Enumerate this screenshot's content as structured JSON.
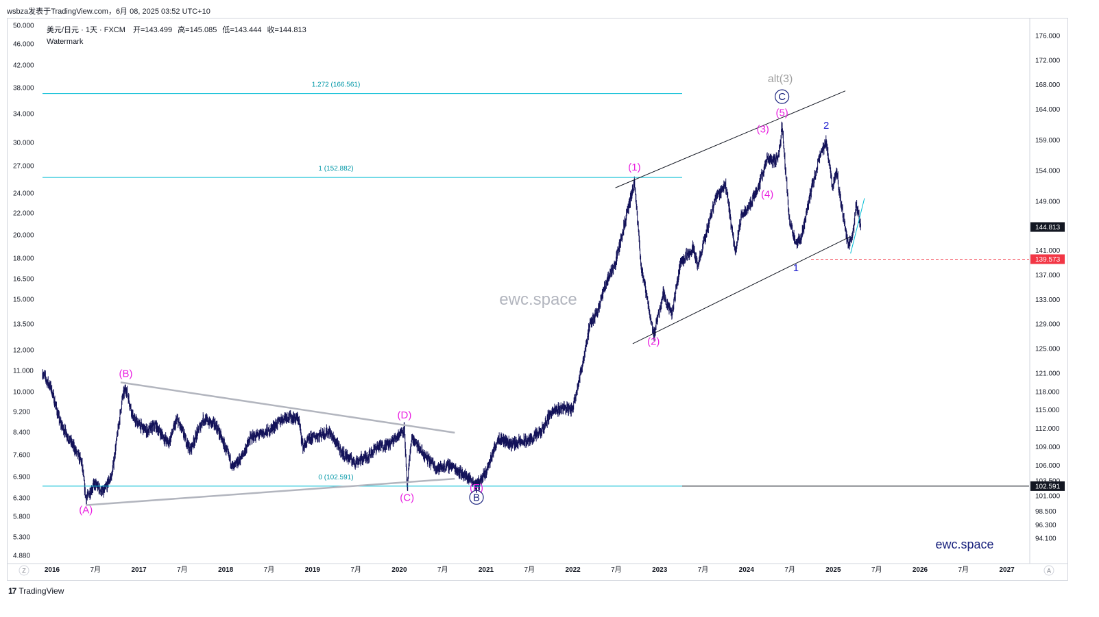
{
  "header": {
    "publish_line": "wsbza发表于TradingView.com，6月 08, 2025 03:52 UTC+10"
  },
  "legend": {
    "symbol": "美元/日元 · 1天 · FXCM",
    "open": "开=143.499",
    "high": "高=145.085",
    "low": "低=143.444",
    "close": "收=144.813",
    "watermark_label": "Watermark"
  },
  "watermarks": {
    "center": "ewc.space",
    "corner": "ewc.space"
  },
  "footer": {
    "brand": "TradingView",
    "logo_glyph": "17"
  },
  "axis_buttons": {
    "left": "Z",
    "right": "A"
  },
  "colors": {
    "candle": "#131259",
    "fib": "#00bcd4",
    "wave_magenta": "#e91ee0",
    "wave_blue": "#1a1acc",
    "wave_navy": "#1a237e",
    "alt_gray": "#9e9e9e",
    "channel": "#b2b5be",
    "dashed_red": "#f23645"
  },
  "chart_data": {
    "type": "candlestick",
    "symbol": "USD/JPY",
    "timeframe": "1D",
    "right_axis_ticks": [
      "176.000",
      "172.000",
      "168.000",
      "164.000",
      "159.000",
      "154.000",
      "149.000",
      "144.813",
      "141.000",
      "137.000",
      "133.000",
      "129.000",
      "125.000",
      "121.000",
      "118.000",
      "115.000",
      "112.000",
      "109.000",
      "106.000",
      "103.500",
      "101.000",
      "98.500",
      "96.300",
      "94.100"
    ],
    "left_axis_ticks": [
      "50.000",
      "46.000",
      "42.000",
      "38.000",
      "34.000",
      "30.000",
      "27.000",
      "24.000",
      "22.000",
      "20.000",
      "18.000",
      "16.500",
      "15.000",
      "13.500",
      "12.000",
      "11.000",
      "10.000",
      "9.200",
      "8.400",
      "7.600",
      "6.900",
      "6.300",
      "5.800",
      "5.300",
      "4.880"
    ],
    "x_ticks": [
      "2016",
      "7月",
      "2017",
      "7月",
      "2018",
      "7月",
      "2019",
      "7月",
      "2020",
      "7月",
      "2021",
      "7月",
      "2022",
      "7月",
      "2023",
      "7月",
      "2024",
      "7月",
      "2025",
      "7月",
      "2026",
      "7月",
      "2027"
    ],
    "price_labels": {
      "last": "144.813",
      "stop": "139.573",
      "fib_zero": "102.591"
    },
    "fib_levels": [
      {
        "label": "1.272 (166.561)",
        "price": 166.561
      },
      {
        "label": "1 (152.882)",
        "price": 152.882
      },
      {
        "label": "0 (102.591)",
        "price": 102.591
      }
    ],
    "path": [
      [
        2016.0,
        121.0
      ],
      [
        2016.1,
        118.5
      ],
      [
        2016.2,
        113.0
      ],
      [
        2016.3,
        110.5
      ],
      [
        2016.45,
        106.5
      ],
      [
        2016.5,
        100.5
      ],
      [
        2016.6,
        103.0
      ],
      [
        2016.7,
        101.5
      ],
      [
        2016.8,
        104.5
      ],
      [
        2016.92,
        117.0
      ],
      [
        2016.96,
        118.6
      ],
      [
        2017.05,
        113.5
      ],
      [
        2017.2,
        111.5
      ],
      [
        2017.3,
        112.5
      ],
      [
        2017.45,
        109.5
      ],
      [
        2017.55,
        113.5
      ],
      [
        2017.7,
        108.5
      ],
      [
        2017.85,
        113.5
      ],
      [
        2018.0,
        112.5
      ],
      [
        2018.1,
        109.0
      ],
      [
        2018.2,
        105.5
      ],
      [
        2018.3,
        107.5
      ],
      [
        2018.4,
        110.5
      ],
      [
        2018.6,
        111.5
      ],
      [
        2018.8,
        114.0
      ],
      [
        2018.95,
        113.5
      ],
      [
        2019.0,
        109.0
      ],
      [
        2019.1,
        110.5
      ],
      [
        2019.3,
        111.5
      ],
      [
        2019.45,
        108.0
      ],
      [
        2019.6,
        106.5
      ],
      [
        2019.75,
        107.5
      ],
      [
        2019.85,
        109.0
      ],
      [
        2020.0,
        109.5
      ],
      [
        2020.17,
        112.0
      ],
      [
        2020.2,
        102.0
      ],
      [
        2020.25,
        110.5
      ],
      [
        2020.4,
        107.5
      ],
      [
        2020.55,
        105.5
      ],
      [
        2020.7,
        106.0
      ],
      [
        2020.85,
        104.5
      ],
      [
        2020.95,
        103.5
      ],
      [
        2021.0,
        102.7
      ],
      [
        2021.1,
        104.5
      ],
      [
        2021.25,
        110.5
      ],
      [
        2021.4,
        109.5
      ],
      [
        2021.6,
        110.0
      ],
      [
        2021.75,
        111.5
      ],
      [
        2021.85,
        114.5
      ],
      [
        2022.0,
        115.5
      ],
      [
        2022.1,
        115.0
      ],
      [
        2022.2,
        121.0
      ],
      [
        2022.3,
        128.5
      ],
      [
        2022.4,
        131.5
      ],
      [
        2022.5,
        136.0
      ],
      [
        2022.6,
        139.0
      ],
      [
        2022.75,
        148.0
      ],
      [
        2022.82,
        151.9
      ],
      [
        2022.9,
        138.0
      ],
      [
        2023.0,
        130.5
      ],
      [
        2023.04,
        127.2
      ],
      [
        2023.15,
        134.0
      ],
      [
        2023.25,
        130.5
      ],
      [
        2023.35,
        139.0
      ],
      [
        2023.5,
        141.5
      ],
      [
        2023.55,
        138.5
      ],
      [
        2023.75,
        149.5
      ],
      [
        2023.87,
        151.8
      ],
      [
        2023.98,
        140.8
      ],
      [
        2024.05,
        146.5
      ],
      [
        2024.15,
        148.5
      ],
      [
        2024.25,
        151.5
      ],
      [
        2024.35,
        156.0
      ],
      [
        2024.45,
        155.5
      ],
      [
        2024.5,
        158.0
      ],
      [
        2024.52,
        161.9
      ],
      [
        2024.6,
        146.5
      ],
      [
        2024.68,
        141.7
      ],
      [
        2024.75,
        143.5
      ],
      [
        2024.85,
        150.5
      ],
      [
        2024.95,
        156.0
      ],
      [
        2025.03,
        158.8
      ],
      [
        2025.1,
        151.5
      ],
      [
        2025.15,
        154.0
      ],
      [
        2025.2,
        148.5
      ],
      [
        2025.28,
        142.0
      ],
      [
        2025.33,
        143.0
      ],
      [
        2025.37,
        148.5
      ],
      [
        2025.43,
        144.8
      ]
    ],
    "wave_labels": [
      "(A)",
      "(B)",
      "(C)",
      "(D)",
      "(E)",
      "B",
      "(1)",
      "(2)",
      "(3)",
      "(4)",
      "(5)",
      "C",
      "alt(3)",
      "1",
      "2"
    ]
  }
}
